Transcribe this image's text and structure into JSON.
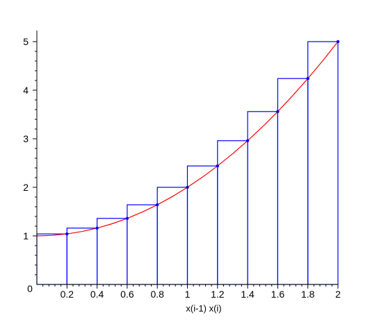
{
  "chart_data": {
    "type": "line",
    "title": "",
    "xlabel": "x(i-1)  x(i)",
    "ylabel": "",
    "xlim": [
      0,
      2
    ],
    "ylim": [
      0,
      5
    ],
    "grid": false,
    "x_ticks": [
      {
        "value": 0.2,
        "label": "0.2"
      },
      {
        "value": 0.4,
        "label": "0.4"
      },
      {
        "value": 0.6,
        "label": "0.6"
      },
      {
        "value": 0.8,
        "label": "0.8"
      },
      {
        "value": 1.0,
        "label": "1"
      },
      {
        "value": 1.2,
        "label": "1.2"
      },
      {
        "value": 1.4,
        "label": "1.4"
      },
      {
        "value": 1.6,
        "label": "1.6"
      },
      {
        "value": 1.8,
        "label": "1.8"
      },
      {
        "value": 2.0,
        "label": "2"
      }
    ],
    "y_ticks": [
      {
        "value": 0,
        "label": "0"
      },
      {
        "value": 1,
        "label": "1"
      },
      {
        "value": 2,
        "label": "2"
      },
      {
        "value": 3,
        "label": "3"
      },
      {
        "value": 4,
        "label": "4"
      },
      {
        "value": 5,
        "label": "5"
      }
    ],
    "rectangles": [
      {
        "x0": 0.0,
        "x1": 0.2,
        "height": 1.04
      },
      {
        "x0": 0.2,
        "x1": 0.4,
        "height": 1.16
      },
      {
        "x0": 0.4,
        "x1": 0.6,
        "height": 1.36
      },
      {
        "x0": 0.6,
        "x1": 0.8,
        "height": 1.64
      },
      {
        "x0": 0.8,
        "x1": 1.0,
        "height": 2.0
      },
      {
        "x0": 1.0,
        "x1": 1.2,
        "height": 2.44
      },
      {
        "x0": 1.2,
        "x1": 1.4,
        "height": 2.96
      },
      {
        "x0": 1.4,
        "x1": 1.6,
        "height": 3.56
      },
      {
        "x0": 1.6,
        "x1": 1.8,
        "height": 4.24
      },
      {
        "x0": 1.8,
        "x1": 2.0,
        "height": 5.0
      }
    ],
    "points": [
      {
        "x": 0.2,
        "y": 1.04
      },
      {
        "x": 0.4,
        "y": 1.16
      },
      {
        "x": 0.6,
        "y": 1.36
      },
      {
        "x": 0.8,
        "y": 1.64
      },
      {
        "x": 1.0,
        "y": 2.0
      },
      {
        "x": 1.2,
        "y": 2.44
      },
      {
        "x": 1.4,
        "y": 2.96
      },
      {
        "x": 1.6,
        "y": 3.56
      },
      {
        "x": 1.8,
        "y": 4.24
      },
      {
        "x": 2.0,
        "y": 5.0
      }
    ],
    "curve": {
      "x": [
        0.0,
        0.1,
        0.2,
        0.3,
        0.4,
        0.5,
        0.6,
        0.7,
        0.8,
        0.9,
        1.0,
        1.1,
        1.2,
        1.3,
        1.4,
        1.5,
        1.6,
        1.7,
        1.8,
        1.9,
        2.0
      ],
      "y": [
        1.0,
        1.01,
        1.04,
        1.09,
        1.16,
        1.25,
        1.36,
        1.49,
        1.64,
        1.81,
        2.0,
        2.21,
        2.44,
        2.69,
        2.96,
        3.25,
        3.56,
        3.89,
        4.24,
        4.61,
        5.0
      ]
    },
    "colors": {
      "rectangles": "#0000ff",
      "points": "#0000ff",
      "curve": "#ff0000",
      "axes": "#000000"
    }
  }
}
